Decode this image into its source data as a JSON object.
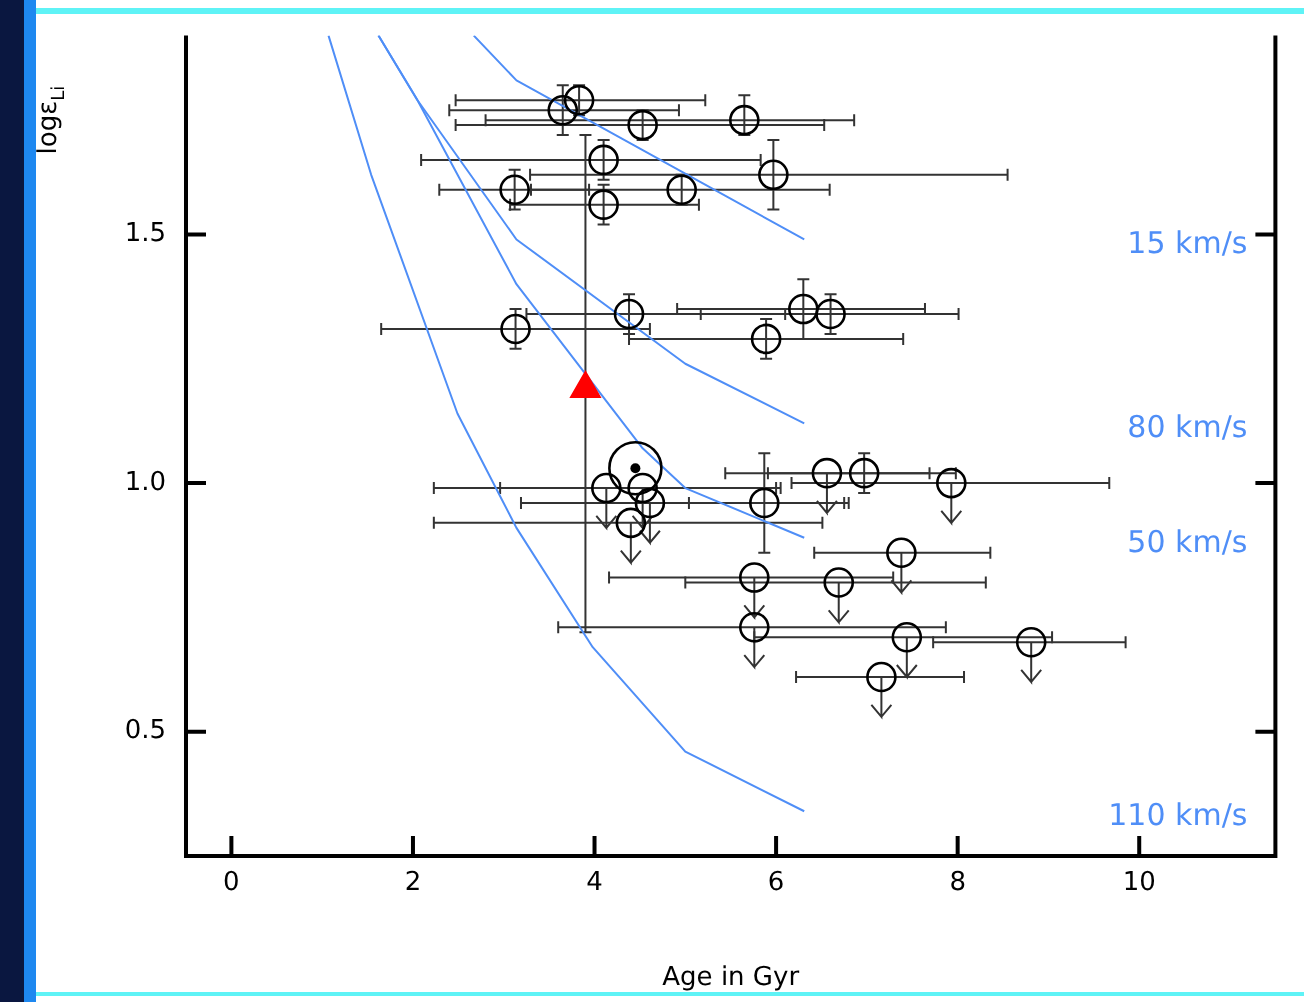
{
  "chart_data": {
    "type": "scatter",
    "xlabel": "Age in Gyr",
    "ylabel": "logε$_{Li}$",
    "xlim": [
      -0.5,
      11.5
    ],
    "xticks": [
      0,
      2,
      4,
      6,
      8,
      10
    ],
    "ylim": [
      0.25,
      1.9
    ],
    "yticks": [
      {
        "value": 0.5,
        "label": "0.5"
      },
      {
        "value": 1,
        "label": "1.0"
      },
      {
        "value": 1.5,
        "label": "1.5"
      }
    ],
    "grid": false,
    "legend": false,
    "annotations": [
      "15 km/s",
      "80 km/s",
      "50 km/s",
      "110 km/s"
    ],
    "series": [
      {
        "type": "line",
        "color": "#4f8ef7",
        "x": [
          2.67,
          3.14,
          6.31
        ],
        "values": [
          1.9,
          1.81,
          1.49
        ]
      },
      {
        "type": "line",
        "color": "#4f8ef7",
        "x": [
          1.62,
          2.05,
          3.14,
          5.0,
          6.31
        ],
        "values": [
          1.9,
          1.77,
          1.49,
          1.24,
          1.12
        ]
      },
      {
        "type": "line",
        "color": "#4f8ef7",
        "x": [
          1.62,
          2.05,
          3.14,
          4.53,
          5.0,
          6.31
        ],
        "values": [
          1.9,
          1.77,
          1.4,
          1.07,
          0.99,
          0.89
        ]
      },
      {
        "type": "line",
        "color": "#4f8ef7",
        "x": [
          1.07,
          1.54,
          2.49,
          3.14,
          3.98,
          5.0,
          6.31
        ],
        "values": [
          1.9,
          1.62,
          1.14,
          0.91,
          0.67,
          0.46,
          0.34
        ]
      },
      {
        "marker": "circle",
        "color": "#000000",
        "x": [
          3.83,
          3.65,
          4.53,
          5.65,
          4.1,
          5.97,
          3.12,
          4.96,
          4.1,
          3.13,
          4.38,
          6.3,
          6.6,
          5.89,
          5.87,
          6.97
        ],
        "values": [
          1.77,
          1.75,
          1.72,
          1.73,
          1.65,
          1.62,
          1.59,
          1.59,
          1.56,
          1.31,
          1.34,
          1.35,
          1.34,
          1.29,
          0.96,
          1.02
        ],
        "errors": [
          [
            1.74,
            1.8
          ],
          [
            1.7,
            1.8
          ],
          [
            1.69,
            1.75
          ],
          [
            1.7,
            1.78
          ],
          [
            1.61,
            1.69
          ],
          [
            1.55,
            1.69
          ],
          [
            1.55,
            1.63
          ],
          [
            1.56,
            1.62
          ],
          [
            1.52,
            1.6
          ],
          [
            1.27,
            1.35
          ],
          [
            1.3,
            1.38
          ],
          [
            1.29,
            1.41
          ],
          [
            1.3,
            1.38
          ],
          [
            1.25,
            1.33
          ],
          [
            0.86,
            1.06
          ],
          [
            0.98,
            1.06
          ]
        ],
        "xerrors": [
          [
            2.47,
            5.22
          ],
          [
            2.4,
            4.93
          ],
          [
            2.47,
            6.53
          ],
          [
            2.8,
            6.86
          ],
          [
            2.09,
            5.83
          ],
          [
            3.29,
            8.55
          ],
          [
            2.29,
            3.94
          ],
          [
            3.3,
            6.59
          ],
          [
            3.07,
            5.15
          ],
          [
            1.65,
            4.61
          ],
          [
            3.25,
            6.1
          ],
          [
            4.91,
            7.64
          ],
          [
            5.17,
            8.01
          ],
          [
            4.38,
            7.4
          ],
          [
            5.04,
            6.8
          ],
          [
            5.91,
            7.98
          ]
        ]
      },
      {
        "marker": "circle",
        "color": "#000000",
        "x": [
          4.13,
          4.53,
          4.61,
          4.4,
          6.56,
          7.93,
          7.38,
          5.76,
          6.69,
          5.76,
          7.44,
          8.81,
          7.16
        ],
        "values": [
          0.99,
          0.99,
          0.96,
          0.92,
          1.02,
          1.0,
          0.86,
          0.81,
          0.8,
          0.71,
          0.69,
          0.68,
          0.61
        ],
        "errors": [
          [
            0.91,
            0.99
          ],
          [
            0.91,
            0.99
          ],
          [
            0.88,
            0.96
          ],
          [
            0.84,
            0.92
          ],
          [
            0.94,
            1.02
          ],
          [
            0.92,
            1.0
          ],
          [
            0.78,
            0.86
          ],
          [
            0.73,
            0.81
          ],
          [
            0.72,
            0.8
          ],
          [
            0.63,
            0.71
          ],
          [
            0.61,
            0.69
          ],
          [
            0.6,
            0.68
          ],
          [
            0.53,
            0.61
          ]
        ],
        "xerrors": [
          [
            2.23,
            6.05
          ],
          [
            2.96,
            6.0
          ],
          [
            3.19,
            6.75
          ],
          [
            2.23,
            6.51
          ],
          [
            5.44,
            7.69
          ],
          [
            6.17,
            9.67
          ],
          [
            6.42,
            8.36
          ],
          [
            4.16,
            7.29
          ],
          [
            5.0,
            8.31
          ],
          [
            3.6,
            7.87
          ],
          [
            5.76,
            9.04
          ],
          [
            7.73,
            9.85
          ],
          [
            6.22,
            8.07
          ]
        ]
      },
      {
        "marker": "triangle",
        "color": "#ff0000",
        "x": [
          3.9
        ],
        "values": [
          1.19
        ],
        "errors": [
          [
            0.7,
            1.7
          ]
        ]
      },
      {
        "type": "bubble",
        "color": "#000000",
        "x": [
          4.45
        ],
        "values": [
          1.03
        ],
        "sizes": [
          1
        ]
      }
    ]
  }
}
